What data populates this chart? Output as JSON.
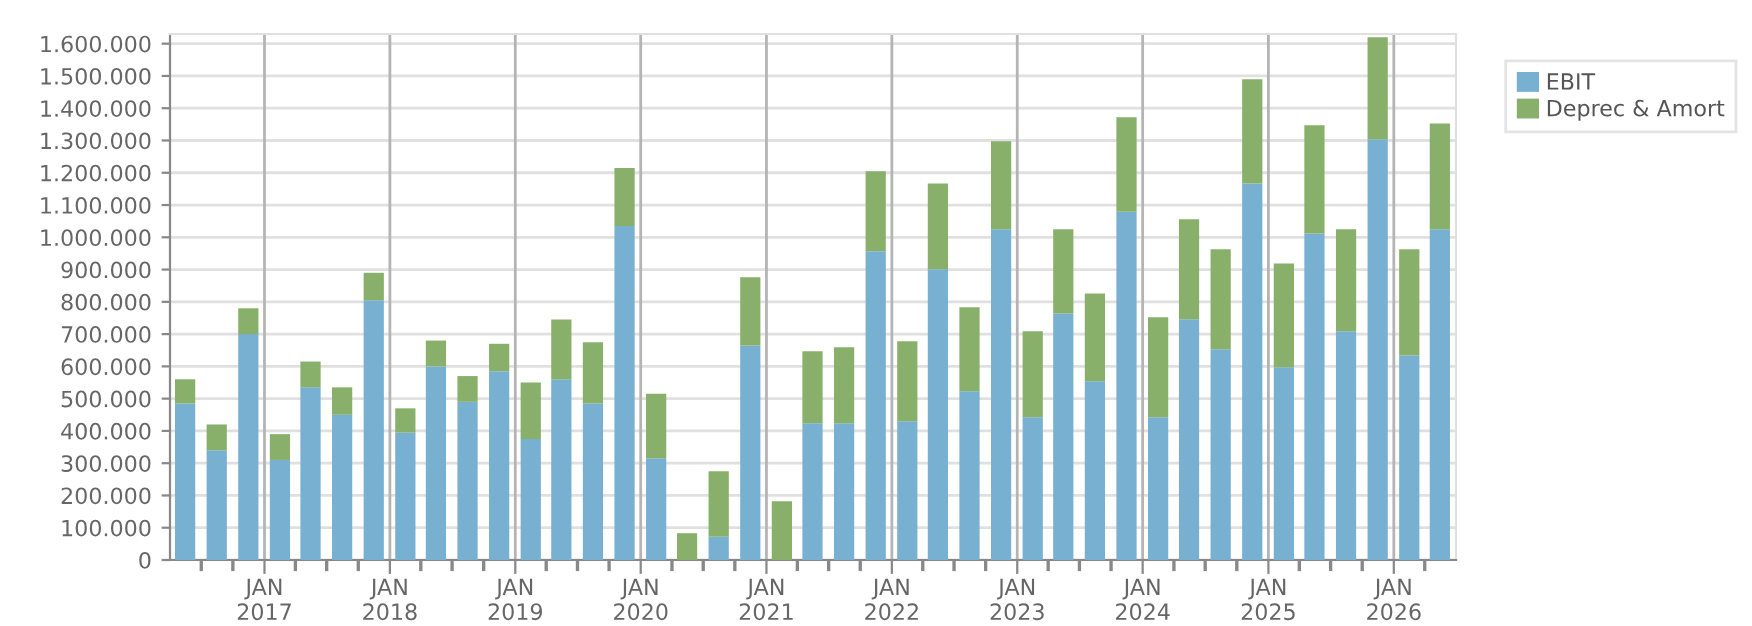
{
  "chart_data": {
    "type": "bar",
    "stacked": true,
    "x": [
      "2016-05-15",
      "2016-08-15",
      "2016-11-15",
      "2017-02-15",
      "2017-05-15",
      "2017-08-15",
      "2017-11-15",
      "2018-02-15",
      "2018-05-15",
      "2018-08-15",
      "2018-11-15",
      "2019-02-15",
      "2019-05-15",
      "2019-08-15",
      "2019-11-15",
      "2020-02-15",
      "2020-05-15",
      "2020-08-15",
      "2020-11-15",
      "2021-02-15",
      "2021-05-15",
      "2021-08-15",
      "2021-11-15",
      "2022-02-15",
      "2022-05-15",
      "2022-08-15",
      "2022-11-15",
      "2023-02-15",
      "2023-05-15",
      "2023-08-15",
      "2023-11-15",
      "2024-02-15",
      "2024-05-15",
      "2024-08-15",
      "2024-11-15",
      "2025-02-15",
      "2025-05-15",
      "2025-08-15",
      "2025-11-15",
      "2026-02-15",
      "2026-05-15"
    ],
    "series": [
      {
        "name": "EBIT",
        "color": "#78b0d2",
        "values": [
          485000,
          340000,
          700000,
          310000,
          535000,
          450000,
          805000,
          395000,
          600000,
          490000,
          585000,
          375000,
          560000,
          485000,
          1035000,
          315000,
          0,
          72000,
          665000,
          0,
          424000,
          424000,
          957000,
          430000,
          901000,
          523000,
          1025000,
          442000,
          764000,
          554000,
          1079000,
          442000,
          746000,
          653000,
          1167000,
          597000,
          1012000,
          709000,
          1304000,
          634000,
          1025000
        ]
      },
      {
        "name": "Deprec & Amort",
        "color": "#88b06a",
        "values": [
          75000,
          80000,
          80000,
          80000,
          80000,
          85000,
          85000,
          75000,
          80000,
          80000,
          85000,
          175000,
          185000,
          190000,
          180000,
          200000,
          83000,
          203000,
          211000,
          182000,
          223000,
          235000,
          248000,
          248000,
          266000,
          260000,
          273000,
          267000,
          261000,
          272000,
          293000,
          310000,
          310000,
          310000,
          323000,
          322000,
          335000,
          316000,
          316000,
          329000,
          328000
        ]
      }
    ],
    "xlim": [
      "2016-04-01",
      "2026-07-01"
    ],
    "xticks": [
      {
        "value": "2016-07-01",
        "label": null
      },
      {
        "value": "2016-10-01",
        "label": null
      },
      {
        "value": "2017-01-01",
        "label": "JAN\n2017"
      },
      {
        "value": "2017-04-01",
        "label": null
      },
      {
        "value": "2017-07-01",
        "label": null
      },
      {
        "value": "2017-10-01",
        "label": null
      },
      {
        "value": "2018-01-01",
        "label": "JAN\n2018"
      },
      {
        "value": "2018-04-01",
        "label": null
      },
      {
        "value": "2018-07-01",
        "label": null
      },
      {
        "value": "2018-10-01",
        "label": null
      },
      {
        "value": "2019-01-01",
        "label": "JAN\n2019"
      },
      {
        "value": "2019-04-01",
        "label": null
      },
      {
        "value": "2019-07-01",
        "label": null
      },
      {
        "value": "2019-10-01",
        "label": null
      },
      {
        "value": "2020-01-01",
        "label": "JAN\n2020"
      },
      {
        "value": "2020-04-01",
        "label": null
      },
      {
        "value": "2020-07-01",
        "label": null
      },
      {
        "value": "2020-10-01",
        "label": null
      },
      {
        "value": "2021-01-01",
        "label": "JAN\n2021"
      },
      {
        "value": "2021-04-01",
        "label": null
      },
      {
        "value": "2021-07-01",
        "label": null
      },
      {
        "value": "2021-10-01",
        "label": null
      },
      {
        "value": "2022-01-01",
        "label": "JAN\n2022"
      },
      {
        "value": "2022-04-01",
        "label": null
      },
      {
        "value": "2022-07-01",
        "label": null
      },
      {
        "value": "2022-10-01",
        "label": null
      },
      {
        "value": "2023-01-01",
        "label": "JAN\n2023"
      },
      {
        "value": "2023-04-01",
        "label": null
      },
      {
        "value": "2023-07-01",
        "label": null
      },
      {
        "value": "2023-10-01",
        "label": null
      },
      {
        "value": "2024-01-01",
        "label": "JAN\n2024"
      },
      {
        "value": "2024-04-01",
        "label": null
      },
      {
        "value": "2024-07-01",
        "label": null
      },
      {
        "value": "2024-10-01",
        "label": null
      },
      {
        "value": "2025-01-01",
        "label": "JAN\n2025"
      },
      {
        "value": "2025-04-01",
        "label": null
      },
      {
        "value": "2025-07-01",
        "label": null
      },
      {
        "value": "2025-10-01",
        "label": null
      },
      {
        "value": "2026-01-01",
        "label": "JAN\n2026"
      },
      {
        "value": "2026-04-01",
        "label": null
      }
    ],
    "ylim": [
      0,
      1630000
    ],
    "yticks": [
      0,
      {
        "value": 100000,
        "label": "100.000"
      },
      {
        "value": 200000,
        "label": "200.000"
      },
      {
        "value": 300000,
        "label": "300.000"
      },
      {
        "value": 400000,
        "label": "400.000"
      },
      {
        "value": 500000,
        "label": "500.000"
      },
      {
        "value": 600000,
        "label": "600.000"
      },
      {
        "value": 700000,
        "label": "700.000"
      },
      {
        "value": 800000,
        "label": "800.000"
      },
      {
        "value": 900000,
        "label": "900.000"
      },
      {
        "value": 1000000,
        "label": "1.000.000"
      },
      {
        "value": 1100000,
        "label": "1.100.000"
      },
      {
        "value": 1200000,
        "label": "1.200.000"
      },
      {
        "value": 1300000,
        "label": "1.300.000"
      },
      {
        "value": 1400000,
        "label": "1.400.000"
      },
      {
        "value": 1500000,
        "label": "1.500.000"
      },
      {
        "value": 1600000,
        "label": "1.600.000"
      }
    ],
    "grid": true,
    "legend": "top right"
  }
}
